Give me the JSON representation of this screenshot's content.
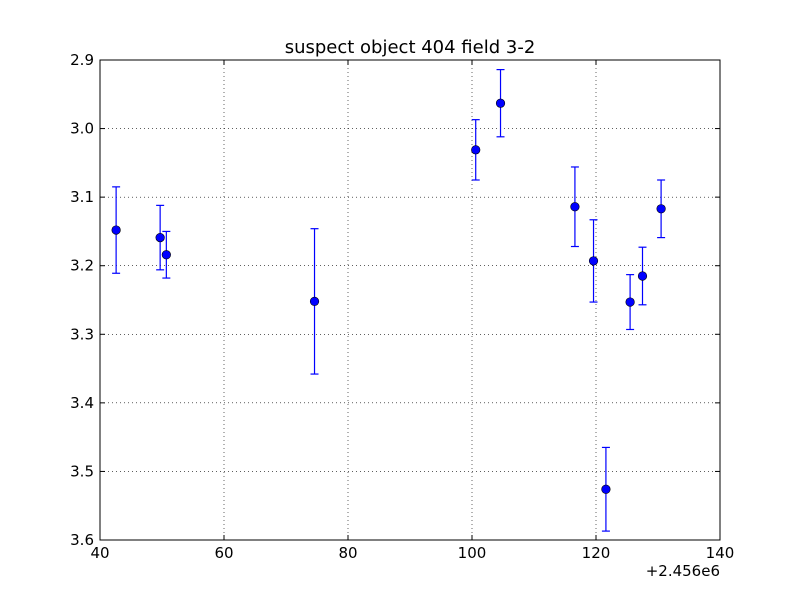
{
  "chart_data": {
    "type": "scatter",
    "title": "suspect object 404 field 3-2",
    "xlabel": "",
    "ylabel": "",
    "x_offset_label": "+2.456e6",
    "xlim": [
      40,
      140
    ],
    "ylim": [
      3.6,
      2.9
    ],
    "y_inverted": true,
    "grid": true,
    "marker_color": "#0000ff",
    "x_ticks": [
      40,
      60,
      80,
      100,
      120,
      140
    ],
    "y_ticks": [
      2.9,
      3.0,
      3.1,
      3.2,
      3.3,
      3.4,
      3.5,
      3.6
    ],
    "x_tick_labels": [
      "40",
      "60",
      "80",
      "100",
      "120",
      "140"
    ],
    "y_tick_labels": [
      "2.9",
      "3.0",
      "3.1",
      "3.2",
      "3.3",
      "3.4",
      "3.5",
      "3.6"
    ],
    "points": [
      {
        "x": 42.6,
        "y": 3.148,
        "err": 0.063
      },
      {
        "x": 49.7,
        "y": 3.159,
        "err": 0.047
      },
      {
        "x": 50.7,
        "y": 3.184,
        "err": 0.034
      },
      {
        "x": 74.6,
        "y": 3.252,
        "err": 0.106
      },
      {
        "x": 100.6,
        "y": 3.031,
        "err": 0.044
      },
      {
        "x": 104.6,
        "y": 2.963,
        "err": 0.049
      },
      {
        "x": 116.6,
        "y": 3.114,
        "err": 0.058
      },
      {
        "x": 119.6,
        "y": 3.193,
        "err": 0.06
      },
      {
        "x": 121.6,
        "y": 3.526,
        "err": 0.061
      },
      {
        "x": 125.5,
        "y": 3.253,
        "err": 0.04
      },
      {
        "x": 127.5,
        "y": 3.215,
        "err": 0.042
      },
      {
        "x": 130.5,
        "y": 3.117,
        "err": 0.042
      }
    ]
  }
}
